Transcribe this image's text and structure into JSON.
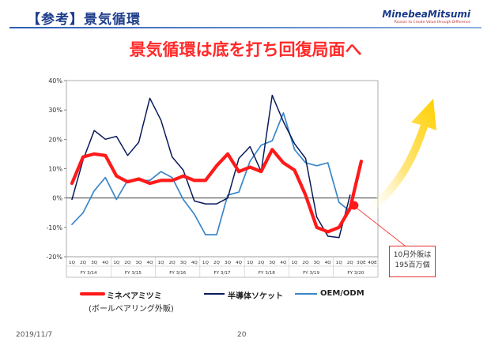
{
  "header": {
    "title": "【参考】景気循環",
    "brand_name": "MinebeaMitsumi",
    "brand_tagline": "Passion to Create Value through Difference"
  },
  "headline": "景気循環は底を打ち回復局面へ",
  "colors": {
    "minebea": "#ff1a1a",
    "semiconductor": "#0a1a5c",
    "oem": "#3b86c8",
    "title": "#1f3f8c",
    "arrow": "#ffd000"
  },
  "callout": {
    "line1": "10月外販は",
    "line2": "195百万個"
  },
  "legend": {
    "minebea_label": "ミネベアミツミ",
    "minebea_sublabel": "(ボールベアリング外販)",
    "semiconductor_label": "半導体ソケット",
    "oem_label": "OEM/ODM"
  },
  "footer": {
    "date": "2019/11/7",
    "page": "20"
  },
  "chart_data": {
    "type": "line",
    "title": "",
    "ylim": [
      -20,
      40
    ],
    "yticks": [
      -20,
      -10,
      0,
      10,
      20,
      30,
      40
    ],
    "ytick_labels": [
      "-20%",
      "-10%",
      "0%",
      "10%",
      "20%",
      "30%",
      "40%"
    ],
    "grid": false,
    "legend_position": "bottom",
    "x_labels": [
      "1Q",
      "2Q",
      "3Q",
      "4Q",
      "1Q",
      "2Q",
      "3Q",
      "4Q",
      "1Q",
      "2Q",
      "3Q",
      "4Q",
      "1Q",
      "2Q",
      "3Q",
      "4Q",
      "1Q",
      "2Q",
      "3Q",
      "4Q",
      "1Q",
      "2Q",
      "3Q",
      "4Q",
      "1Q",
      "2Q",
      "3QE",
      "4QE"
    ],
    "groups": [
      {
        "label": "FY 3/14",
        "start": 0,
        "end": 3
      },
      {
        "label": "FY 3/15",
        "start": 4,
        "end": 7
      },
      {
        "label": "FY 3/16",
        "start": 8,
        "end": 11
      },
      {
        "label": "FY 3/17",
        "start": 12,
        "end": 15
      },
      {
        "label": "FY 3/18",
        "start": 16,
        "end": 19
      },
      {
        "label": "FY 3/19",
        "start": 20,
        "end": 23
      },
      {
        "label": "FY 3/20",
        "start": 24,
        "end": 27
      }
    ],
    "series": [
      {
        "name": "ミネベアミツミ",
        "x": [
          0,
          1,
          2,
          3,
          4,
          5,
          6,
          7,
          8,
          9,
          10,
          11,
          12,
          13,
          14,
          15,
          16,
          17,
          18,
          19,
          20,
          21,
          22,
          23,
          24,
          25,
          26
        ],
        "values": [
          5,
          14,
          15,
          14.5,
          7.5,
          5.5,
          6.5,
          5,
          6,
          6,
          7.5,
          6,
          6,
          11,
          15,
          9,
          10.5,
          9,
          16.5,
          12,
          9.5,
          1,
          -10,
          -11.5,
          -10,
          -3.5,
          12.5
        ]
      },
      {
        "name": "半導体ソケット",
        "x": [
          0,
          1,
          2,
          3,
          4,
          5,
          6,
          7,
          8,
          9,
          10,
          11,
          12,
          13,
          14,
          15,
          16,
          17,
          18,
          19,
          20,
          21,
          22,
          23,
          24,
          25
        ],
        "values": [
          -0.5,
          13,
          23,
          20,
          21,
          14.5,
          19,
          34,
          26.5,
          14,
          9.5,
          -1,
          -2,
          -2,
          0,
          13.5,
          17.5,
          9,
          35,
          26,
          18.5,
          13.5,
          -6.5,
          -13,
          -13.5,
          1
        ]
      },
      {
        "name": "OEM/ODM",
        "x": [
          0,
          1,
          2,
          3,
          4,
          5,
          6,
          7,
          8,
          9,
          10,
          11,
          12,
          13,
          14,
          15,
          16,
          17,
          18,
          19,
          20,
          21,
          22,
          23,
          24,
          25
        ],
        "values": [
          -9,
          -5,
          2.5,
          7,
          -0.5,
          6,
          6,
          6,
          9,
          7,
          -0.5,
          -5.5,
          -12.5,
          -12.5,
          1,
          2,
          12.5,
          18,
          19.5,
          29,
          16.5,
          12,
          11,
          12,
          -1.5,
          -4.5
        ]
      }
    ]
  }
}
